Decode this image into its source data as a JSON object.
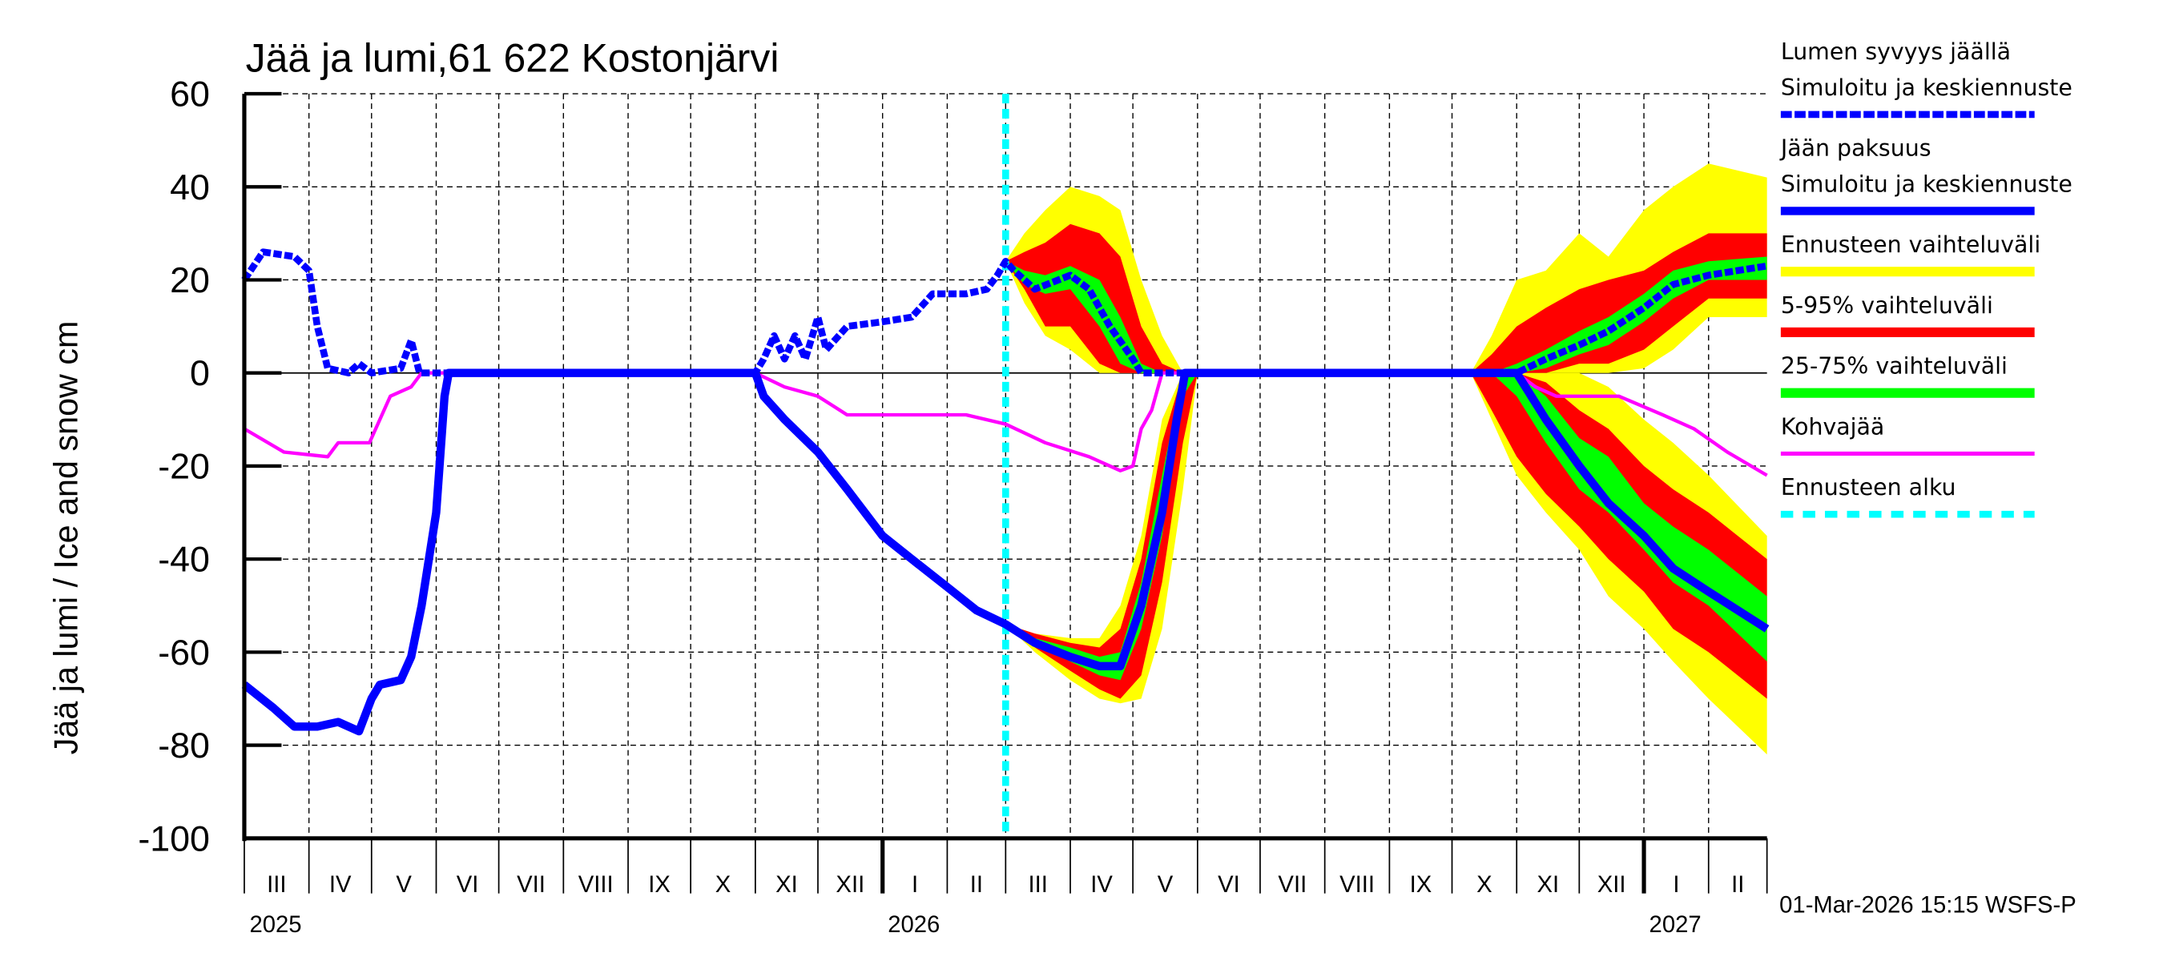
{
  "chart_data": {
    "type": "area",
    "title": "Jää ja lumi,61 622 Kostonjärvi",
    "ylabel": "Jää ja lumi / Ice and snow    cm",
    "ylim": [
      -100,
      60
    ],
    "yticks": [
      60,
      40,
      20,
      0,
      -20,
      -40,
      -60,
      -80,
      -100
    ],
    "xlim": [
      "2025-03-01",
      "2027-03-01"
    ],
    "grid": true,
    "legend_position": "right",
    "forecast_start": "2026-03-01",
    "month_labels": [
      "III",
      "IV",
      "V",
      "VI",
      "VII",
      "VIII",
      "IX",
      "X",
      "XI",
      "XII",
      "I",
      "II",
      "III",
      "IV",
      "V",
      "VI",
      "VII",
      "VIII",
      "IX",
      "X",
      "XI",
      "XII",
      "I",
      "II"
    ],
    "year_labels": [
      {
        "label": "2025",
        "date": "2025-03-16"
      },
      {
        "label": "2026",
        "date": "2026-01-16"
      },
      {
        "label": "2027",
        "date": "2027-01-16"
      }
    ],
    "footer": "01-Mar-2026 15:15 WSFS-P",
    "colors": {
      "snow": "#0000ff",
      "ice": "#0000ff",
      "range": "#ffff00",
      "p5_95": "#ff0000",
      "p25_75": "#00ff00",
      "slush": "#ff00ff",
      "forecast_start": "#00ffff"
    },
    "legend": [
      {
        "label": "Lumen syvyys jäällä",
        "label2": "Simuloitu ja keskiennuste",
        "style": "dashed",
        "color": "#0000ff"
      },
      {
        "label": "Jään paksuus",
        "label2": "Simuloitu ja keskiennuste",
        "style": "solid",
        "color": "#0000ff"
      },
      {
        "label": "Ennusteen vaihteluväli",
        "style": "band",
        "color": "#ffff00"
      },
      {
        "label": "5-95% vaihteluväli",
        "style": "band",
        "color": "#ff0000"
      },
      {
        "label": "25-75% vaihteluväli",
        "style": "band",
        "color": "#00ff00"
      },
      {
        "label": "Kohvajää",
        "style": "thin",
        "color": "#ff00ff"
      },
      {
        "label": "Ennusteen alku",
        "style": "dotted",
        "color": "#00ffff"
      }
    ],
    "bands_columns": [
      "date",
      "range_lo",
      "range_hi",
      "p5",
      "p95",
      "p25",
      "p75"
    ],
    "bands": [
      [
        [
          "2026-03-01",
          24,
          24,
          24,
          24,
          24,
          24
        ],
        [
          "2026-03-10",
          15,
          30,
          18,
          26,
          19,
          22
        ],
        [
          "2026-03-20",
          8,
          35,
          10,
          28,
          17,
          21
        ],
        [
          "2026-04-01",
          5,
          40,
          10,
          32,
          18,
          23
        ],
        [
          "2026-04-15",
          0,
          38,
          2,
          30,
          10,
          20
        ],
        [
          "2026-04-25",
          0,
          35,
          0,
          25,
          2,
          12
        ],
        [
          "2026-05-05",
          0,
          20,
          0,
          10,
          0,
          2
        ],
        [
          "2026-05-15",
          0,
          8,
          0,
          2,
          0,
          0
        ],
        [
          "2026-05-25",
          0,
          0,
          0,
          0,
          0,
          0
        ]
      ],
      [
        [
          "2026-03-01",
          -54,
          -54,
          -54,
          -54,
          -54,
          -54
        ],
        [
          "2026-03-15",
          -60,
          -56,
          -59,
          -56,
          -58,
          -57
        ],
        [
          "2026-04-01",
          -66,
          -57,
          -64,
          -58,
          -62,
          -59
        ],
        [
          "2026-04-15",
          -70,
          -57,
          -68,
          -59,
          -65,
          -61
        ],
        [
          "2026-04-25",
          -71,
          -50,
          -70,
          -55,
          -66,
          -60
        ],
        [
          "2026-05-05",
          -70,
          -35,
          -65,
          -40,
          -55,
          -45
        ],
        [
          "2026-05-15",
          -55,
          -10,
          -45,
          -15,
          -35,
          -22
        ],
        [
          "2026-05-25",
          -25,
          0,
          -15,
          0,
          -5,
          0
        ],
        [
          "2026-06-01",
          0,
          0,
          0,
          0,
          0,
          0
        ]
      ],
      [
        [
          "2026-10-10",
          0,
          0,
          0,
          0,
          0,
          0
        ],
        [
          "2026-10-20",
          0,
          8,
          0,
          4,
          0,
          0
        ],
        [
          "2026-11-01",
          0,
          20,
          0,
          10,
          0,
          2
        ],
        [
          "2026-11-15",
          0,
          22,
          0,
          14,
          1,
          5
        ],
        [
          "2026-12-01",
          0,
          30,
          2,
          18,
          4,
          9
        ],
        [
          "2026-12-15",
          0,
          25,
          2,
          20,
          6,
          12
        ],
        [
          "2027-01-01",
          1,
          35,
          5,
          22,
          11,
          17
        ],
        [
          "2027-01-15",
          5,
          40,
          10,
          26,
          16,
          22
        ],
        [
          "2027-02-01",
          12,
          45,
          16,
          30,
          20,
          24
        ],
        [
          "2027-03-01",
          12,
          42,
          16,
          30,
          20,
          25
        ]
      ],
      [
        [
          "2026-10-10",
          0,
          0,
          0,
          0,
          0,
          0
        ],
        [
          "2026-10-20",
          -10,
          0,
          -8,
          0,
          0,
          0
        ],
        [
          "2026-11-01",
          -22,
          0,
          -18,
          0,
          -5,
          0
        ],
        [
          "2026-11-15",
          -30,
          0,
          -26,
          -2,
          -15,
          -5
        ],
        [
          "2026-12-01",
          -38,
          0,
          -33,
          -8,
          -25,
          -14
        ],
        [
          "2026-12-15",
          -48,
          -3,
          -40,
          -12,
          -30,
          -18
        ],
        [
          "2027-01-01",
          -55,
          -10,
          -47,
          -20,
          -38,
          -28
        ],
        [
          "2027-01-15",
          -62,
          -15,
          -55,
          -25,
          -45,
          -33
        ],
        [
          "2027-02-01",
          -70,
          -22,
          -60,
          -30,
          -50,
          -38
        ],
        [
          "2027-03-01",
          -82,
          -35,
          -70,
          -40,
          -62,
          -48
        ]
      ]
    ],
    "series": [
      {
        "name": "Lumen syvyys jäällä",
        "style": "dashed",
        "points": [
          [
            "2025-03-01",
            20
          ],
          [
            "2025-03-10",
            26
          ],
          [
            "2025-03-25",
            25
          ],
          [
            "2025-04-01",
            22
          ],
          [
            "2025-04-05",
            10
          ],
          [
            "2025-04-10",
            1
          ],
          [
            "2025-04-20",
            0
          ],
          [
            "2025-04-25",
            2
          ],
          [
            "2025-05-01",
            0
          ],
          [
            "2025-05-15",
            1
          ],
          [
            "2025-05-20",
            7
          ],
          [
            "2025-05-24",
            0
          ],
          [
            "2025-11-01",
            0
          ],
          [
            "2025-11-05",
            3
          ],
          [
            "2025-11-10",
            8
          ],
          [
            "2025-11-15",
            3
          ],
          [
            "2025-11-20",
            8
          ],
          [
            "2025-11-25",
            3
          ],
          [
            "2025-12-01",
            12
          ],
          [
            "2025-12-05",
            5
          ],
          [
            "2025-12-15",
            10
          ],
          [
            "2026-01-01",
            11
          ],
          [
            "2026-01-15",
            12
          ],
          [
            "2026-01-25",
            17
          ],
          [
            "2026-02-10",
            17
          ],
          [
            "2026-02-20",
            18
          ],
          [
            "2026-02-25",
            21
          ],
          [
            "2026-03-01",
            24
          ],
          [
            "2026-03-05",
            22
          ],
          [
            "2026-03-15",
            18
          ],
          [
            "2026-04-01",
            21
          ],
          [
            "2026-04-10",
            18
          ],
          [
            "2026-04-20",
            10
          ],
          [
            "2026-05-01",
            3
          ],
          [
            "2026-05-05",
            0
          ],
          [
            "2026-11-01",
            0
          ],
          [
            "2026-11-15",
            3
          ],
          [
            "2026-12-01",
            6
          ],
          [
            "2026-12-15",
            9
          ],
          [
            "2027-01-01",
            14
          ],
          [
            "2027-01-15",
            19
          ],
          [
            "2027-02-01",
            21
          ],
          [
            "2027-03-01",
            23
          ]
        ]
      },
      {
        "name": "Jään paksuus",
        "style": "solid",
        "points": [
          [
            "2025-03-01",
            -67
          ],
          [
            "2025-03-15",
            -72
          ],
          [
            "2025-03-25",
            -76
          ],
          [
            "2025-04-05",
            -76
          ],
          [
            "2025-04-15",
            -75
          ],
          [
            "2025-04-25",
            -77
          ],
          [
            "2025-05-01",
            -70
          ],
          [
            "2025-05-05",
            -67
          ],
          [
            "2025-05-15",
            -66
          ],
          [
            "2025-05-20",
            -61
          ],
          [
            "2025-05-25",
            -50
          ],
          [
            "2025-06-01",
            -30
          ],
          [
            "2025-06-05",
            -5
          ],
          [
            "2025-06-07",
            0
          ],
          [
            "2025-11-01",
            0
          ],
          [
            "2025-11-05",
            -5
          ],
          [
            "2025-11-15",
            -10
          ],
          [
            "2025-12-01",
            -17
          ],
          [
            "2025-12-15",
            -25
          ],
          [
            "2026-01-01",
            -35
          ],
          [
            "2026-01-15",
            -40
          ],
          [
            "2026-02-01",
            -46
          ],
          [
            "2026-02-15",
            -51
          ],
          [
            "2026-03-01",
            -54
          ],
          [
            "2026-03-15",
            -58
          ],
          [
            "2026-04-01",
            -61
          ],
          [
            "2026-04-15",
            -63
          ],
          [
            "2026-04-25",
            -63
          ],
          [
            "2026-05-05",
            -50
          ],
          [
            "2026-05-15",
            -30
          ],
          [
            "2026-05-22",
            -10
          ],
          [
            "2026-05-26",
            0
          ],
          [
            "2026-11-01",
            0
          ],
          [
            "2026-11-15",
            -10
          ],
          [
            "2026-12-01",
            -20
          ],
          [
            "2026-12-15",
            -28
          ],
          [
            "2027-01-01",
            -35
          ],
          [
            "2027-01-15",
            -42
          ],
          [
            "2027-02-01",
            -47
          ],
          [
            "2027-03-01",
            -55
          ]
        ]
      },
      {
        "name": "Kohvajää",
        "style": "thin",
        "points": [
          [
            "2025-03-01",
            -12
          ],
          [
            "2025-03-20",
            -17
          ],
          [
            "2025-04-10",
            -18
          ],
          [
            "2025-04-15",
            -15
          ],
          [
            "2025-04-30",
            -15
          ],
          [
            "2025-05-10",
            -5
          ],
          [
            "2025-05-20",
            -3
          ],
          [
            "2025-05-25",
            0
          ],
          [
            "2025-11-01",
            0
          ],
          [
            "2025-11-15",
            -3
          ],
          [
            "2025-12-01",
            -5
          ],
          [
            "2025-12-15",
            -9
          ],
          [
            "2026-02-10",
            -9
          ],
          [
            "2026-03-01",
            -11
          ],
          [
            "2026-03-20",
            -15
          ],
          [
            "2026-04-10",
            -18
          ],
          [
            "2026-04-25",
            -21
          ],
          [
            "2026-05-01",
            -20
          ],
          [
            "2026-05-05",
            -12
          ],
          [
            "2026-05-10",
            -8
          ],
          [
            "2026-05-15",
            0
          ],
          [
            "2026-11-01",
            0
          ],
          [
            "2026-11-10",
            -3
          ],
          [
            "2026-11-20",
            -5
          ],
          [
            "2026-12-20",
            -5
          ],
          [
            "2027-01-10",
            -9
          ],
          [
            "2027-01-25",
            -12
          ],
          [
            "2027-02-10",
            -17
          ],
          [
            "2027-03-01",
            -22
          ]
        ]
      }
    ]
  }
}
